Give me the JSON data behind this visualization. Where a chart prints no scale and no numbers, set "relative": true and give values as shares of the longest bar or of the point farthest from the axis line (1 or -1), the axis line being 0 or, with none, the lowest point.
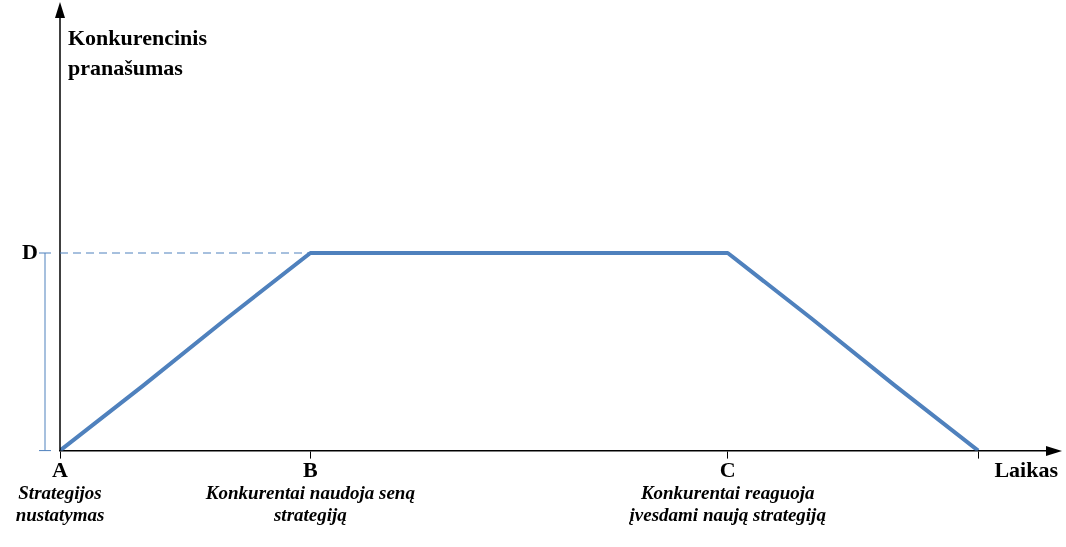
{
  "chart_data": {
    "type": "line",
    "relative": true,
    "xlabel": "Laikas",
    "categories": [
      "A",
      null,
      null,
      "B",
      null,
      null,
      null,
      null,
      "C",
      null,
      null,
      null
    ],
    "series": [
      {
        "color": "#4f81bd",
        "values": [
          0,
          0.33,
          0.67,
          1,
          1,
          1,
          1,
          1,
          1,
          0.67,
          0.33,
          0
        ]
      }
    ],
    "ref_lines": [
      {
        "axis": "y",
        "value": 1,
        "label": "D",
        "color": "#4f81bd",
        "line_style": "dashed"
      }
    ],
    "annotations": [
      "Konkurencinis pranašumas",
      "Strategijos nustatymas",
      "Konkurentai naudoja seną strategiją",
      "Konkurentai reaguoja įvesdami naują strategiją"
    ],
    "grid": false,
    "legend": false
  }
}
